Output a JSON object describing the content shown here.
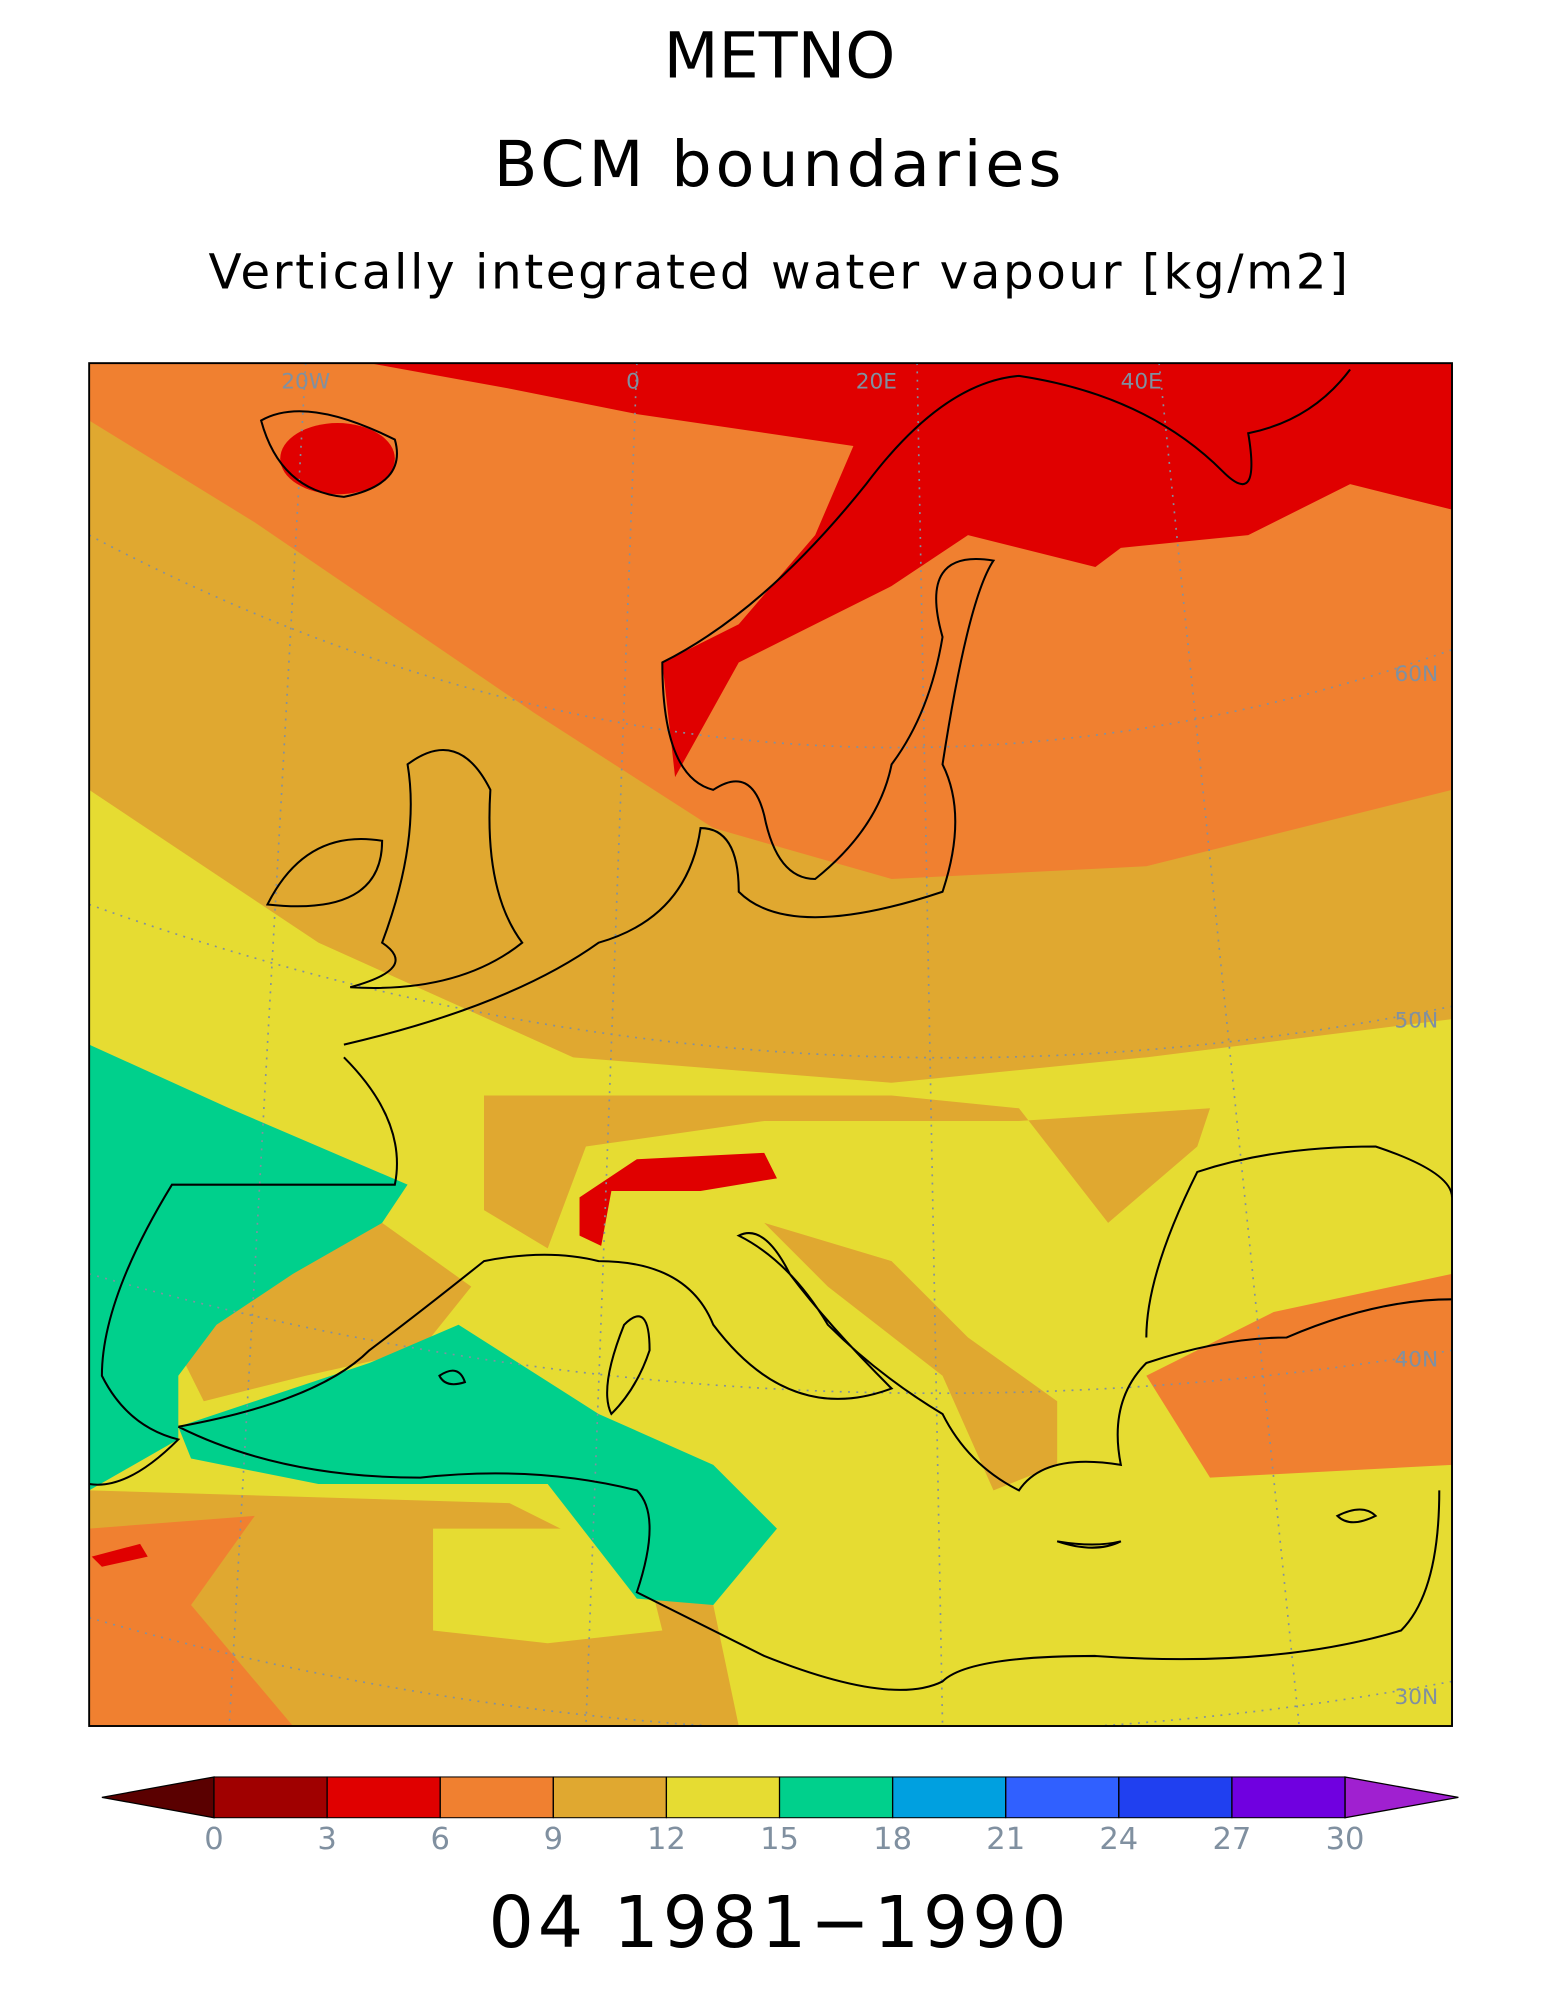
{
  "header": {
    "title": "METNO",
    "subtitle": "BCM boundaries",
    "variable": "Vertically integrated water vapour [kg/m2]"
  },
  "map": {
    "graticule_labels": [
      "20W",
      "0",
      "20E",
      "40E",
      "60N",
      "50N",
      "40N",
      "30N"
    ]
  },
  "colorbar": {
    "ticks": [
      0,
      3,
      6,
      9,
      12,
      15,
      18,
      21,
      24,
      27,
      30
    ],
    "colors": [
      "#5a0000",
      "#a00000",
      "#e00000",
      "#f08030",
      "#e0a830",
      "#e6dc32",
      "#00d08c",
      "#00a0e0",
      "#3060ff",
      "#2040f0",
      "#7000e0",
      "#a020d0"
    ]
  },
  "footer": {
    "period": "04 1981−1990"
  }
}
